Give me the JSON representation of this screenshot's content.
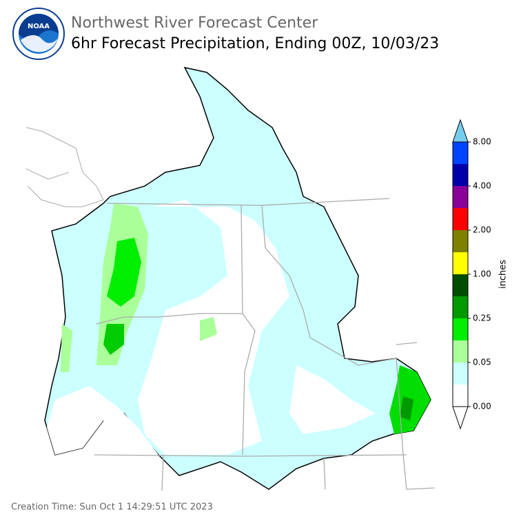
{
  "header": {
    "logo_text": "NOAA",
    "title": "Northwest River Forecast Center",
    "subtitle": "6hr Forecast Precipitation, Ending 00Z, 10/03/23"
  },
  "colorbar": {
    "label": "inches",
    "ticks": [
      "0.00",
      "0.05",
      "0.25",
      "1.00",
      "2.00",
      "4.00",
      "8.00"
    ],
    "colors": [
      "#ffffff",
      "#ccffff",
      "#aaff99",
      "#00ee00",
      "#009900",
      "#004d00",
      "#ffff00",
      "#808000",
      "#ff0000",
      "#880099",
      "#0000aa",
      "#0044ff"
    ],
    "under_color": "#ffffff",
    "over_color": "#77ccee"
  },
  "footer": {
    "creation_time": "Creation Time: Sun Oct 1 14:29:51 UTC 2023"
  }
}
